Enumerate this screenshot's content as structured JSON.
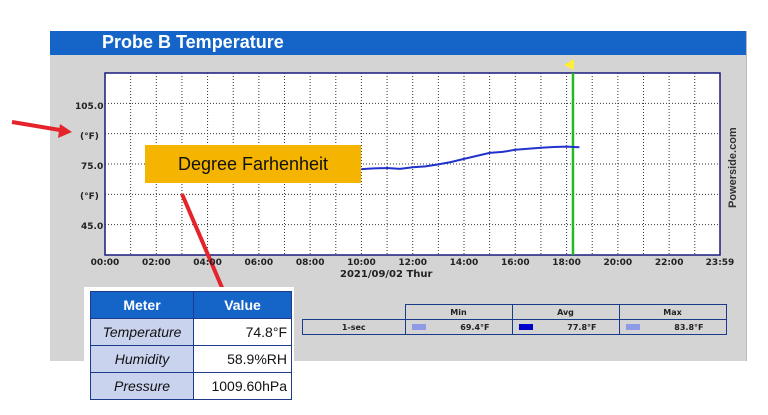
{
  "title": "Probe B Temperature",
  "y_axis": {
    "ticks": [
      "105.0",
      "(°F)",
      "75.0",
      "(°F)",
      "45.0"
    ]
  },
  "x_axis": {
    "ticks": [
      "00:00",
      "02:00",
      "04:00",
      "06:00",
      "08:00",
      "10:00",
      "12:00",
      "14:00",
      "16:00",
      "18:00",
      "20:00",
      "22:00",
      "23:59"
    ],
    "date_label": "2021/09/02  Thur"
  },
  "watermark": "Powerside.com",
  "callout": "Degree Farhenheit",
  "stats": {
    "interval": "1-sec",
    "headers": [
      "Min",
      "Avg",
      "Max"
    ],
    "min": "69.4°F",
    "avg": "77.8°F",
    "max": "83.8°F"
  },
  "meter": {
    "headers": [
      "Meter",
      "Value"
    ],
    "rows": [
      {
        "label": "Temperature",
        "value": "74.8°F"
      },
      {
        "label": "Humidity",
        "value": "58.9%RH"
      },
      {
        "label": "Pressure",
        "value": "1009.60hPa"
      }
    ]
  },
  "chart_data": {
    "type": "line",
    "xlabel": "",
    "ylabel": "(°F)",
    "ylim": [
      30,
      120
    ],
    "grid": true,
    "x": [
      "10:00",
      "10:30",
      "11:00",
      "11:30",
      "12:00",
      "12:30",
      "13:00",
      "13:30",
      "14:00",
      "14:30",
      "15:00",
      "15:30",
      "16:00",
      "16:30",
      "17:00",
      "17:30",
      "18:00",
      "18:30"
    ],
    "series": [
      {
        "values": [
          72.5,
          72.8,
          73.0,
          72.6,
          73.4,
          73.8,
          74.8,
          76.0,
          77.5,
          79.0,
          80.5,
          81.0,
          82.0,
          82.5,
          83.0,
          83.4,
          83.6,
          83.3
        ],
        "color": "#2233cc"
      }
    ],
    "cursor_time": "18:15",
    "colors": {
      "line": "#2233cc",
      "cursor": "#22bb22",
      "min_swatch": "#8e9ae6",
      "avg_swatch": "#0000cc",
      "max_swatch": "#8e9ae6"
    }
  }
}
